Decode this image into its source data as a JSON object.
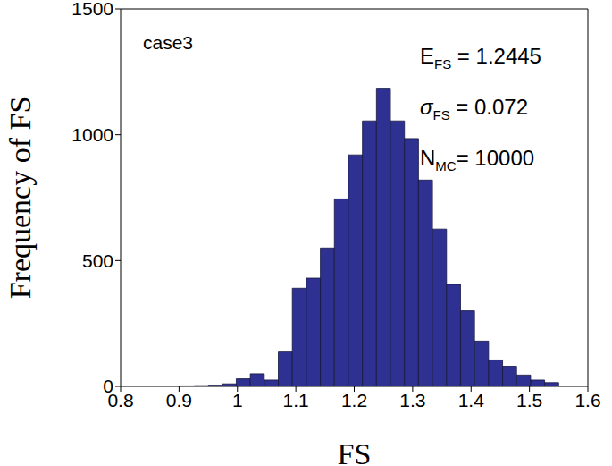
{
  "chart_data": {
    "type": "histogram",
    "bins": [
      0.83,
      0.854,
      0.878,
      0.902,
      0.926,
      0.95,
      0.974,
      0.998,
      1.022,
      1.046,
      1.07,
      1.094,
      1.118,
      1.142,
      1.166,
      1.19,
      1.214,
      1.238,
      1.262,
      1.286,
      1.31,
      1.334,
      1.358,
      1.382,
      1.406,
      1.43,
      1.454,
      1.478,
      1.502,
      1.526,
      1.55
    ],
    "values": [
      1,
      0,
      1,
      2,
      3,
      5,
      10,
      30,
      50,
      25,
      140,
      390,
      430,
      550,
      745,
      920,
      1055,
      1185,
      1055,
      985,
      820,
      625,
      405,
      300,
      180,
      105,
      80,
      45,
      25,
      15
    ],
    "color": "#2e3192",
    "xlabel": "FS",
    "ylabel": "Frequency of FS",
    "xlim": [
      0.8,
      1.6
    ],
    "xticks": [
      0.8,
      0.9,
      1,
      1.1,
      1.2,
      1.3,
      1.4,
      1.5,
      1.6
    ],
    "ylim": [
      0,
      1500
    ],
    "yticks": [
      0,
      500,
      1000,
      1500
    ],
    "annotations": [
      {
        "text": "case3"
      },
      {
        "text": "E",
        "subscript": "FS",
        "suffix": " = 1.2445"
      },
      {
        "text": "σ",
        "subscript": "FS",
        "suffix": " = 0.072"
      },
      {
        "text": "N",
        "subscript": "MC",
        "suffix": "= 10000"
      }
    ]
  }
}
